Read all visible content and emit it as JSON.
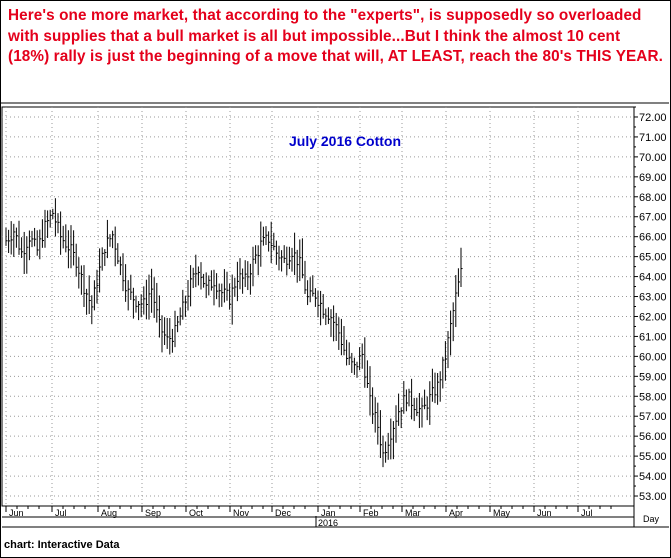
{
  "headline": "Here's one more market, that according to the \"experts\",  is supposedly so overloaded with supplies that a bull market is all but impossible...But I think the almost 10 cent (18%) rally is just the beginning of a move that will, AT LEAST, reach the 80's THIS YEAR.",
  "credit": "chart: Interactive Data",
  "colors": {
    "headline": "#e4001b",
    "title": "#0000cc",
    "bars": "#000000",
    "grid": "#9a9a9a"
  },
  "chart_data": {
    "type": "ohlc",
    "title": "July 2016 Cotton",
    "x_unit_label": "Day",
    "year_label": "2016",
    "ylim": [
      52.5,
      72.5
    ],
    "y_ticks": [
      53,
      54,
      55,
      56,
      57,
      58,
      59,
      60,
      61,
      62,
      63,
      64,
      65,
      66,
      67,
      68,
      69,
      70,
      71,
      72
    ],
    "y_tick_labels": [
      "53.00",
      "54.00",
      "55.00",
      "56.00",
      "57.00",
      "58.00",
      "59.00",
      "60.00",
      "61.00",
      "62.00",
      "63.00",
      "64.00",
      "65.00",
      "66.00",
      "67.00",
      "68.00",
      "69.00",
      "70.00",
      "71.00",
      "72.00"
    ],
    "months": [
      "Jun",
      "Jul",
      "Aug",
      "Sep",
      "Oct",
      "Nov",
      "Dec",
      "Jan",
      "Feb",
      "Mar",
      "Apr",
      "May",
      "Jun",
      "Jul"
    ],
    "grid": true,
    "anchors": [
      [
        0,
        65.8
      ],
      [
        3,
        66.3
      ],
      [
        6,
        65.2
      ],
      [
        9,
        66.0
      ],
      [
        12,
        65.3
      ],
      [
        15,
        66.5
      ],
      [
        18,
        67.2
      ],
      [
        21,
        66.0
      ],
      [
        24,
        65.5
      ],
      [
        27,
        64.8
      ],
      [
        30,
        63.5
      ],
      [
        33,
        62.5
      ],
      [
        35,
        63.8
      ],
      [
        38,
        65.5
      ],
      [
        41,
        66.1
      ],
      [
        44,
        64.5
      ],
      [
        47,
        63.2
      ],
      [
        50,
        62.8
      ],
      [
        53,
        62.6
      ],
      [
        56,
        63.4
      ],
      [
        59,
        61.5
      ],
      [
        62,
        60.8
      ],
      [
        65,
        61.2
      ],
      [
        68,
        62.4
      ],
      [
        71,
        63.6
      ],
      [
        74,
        64.5
      ],
      [
        77,
        63.4
      ],
      [
        80,
        63.8
      ],
      [
        83,
        63.2
      ],
      [
        86,
        62.9
      ],
      [
        89,
        64.0
      ],
      [
        92,
        63.8
      ],
      [
        95,
        64.7
      ],
      [
        98,
        65.6
      ],
      [
        101,
        65.9
      ],
      [
        104,
        65.2
      ],
      [
        107,
        64.8
      ],
      [
        110,
        65.3
      ],
      [
        113,
        64.6
      ],
      [
        116,
        62.9
      ],
      [
        119,
        63.1
      ],
      [
        122,
        62.4
      ],
      [
        125,
        62.0
      ],
      [
        128,
        61.2
      ],
      [
        131,
        59.9
      ],
      [
        134,
        59.4
      ],
      [
        137,
        60.1
      ],
      [
        140,
        57.7
      ],
      [
        143,
        56.5
      ],
      [
        145,
        55.1
      ],
      [
        148,
        56.2
      ],
      [
        151,
        57.3
      ],
      [
        154,
        58.0
      ],
      [
        157,
        57.6
      ],
      [
        160,
        57.2
      ],
      [
        163,
        57.9
      ],
      [
        166,
        58.5
      ],
      [
        169,
        60.0
      ],
      [
        171,
        61.5
      ],
      [
        173,
        63.0
      ],
      [
        175,
        64.2
      ]
    ],
    "n_bars": 176
  }
}
